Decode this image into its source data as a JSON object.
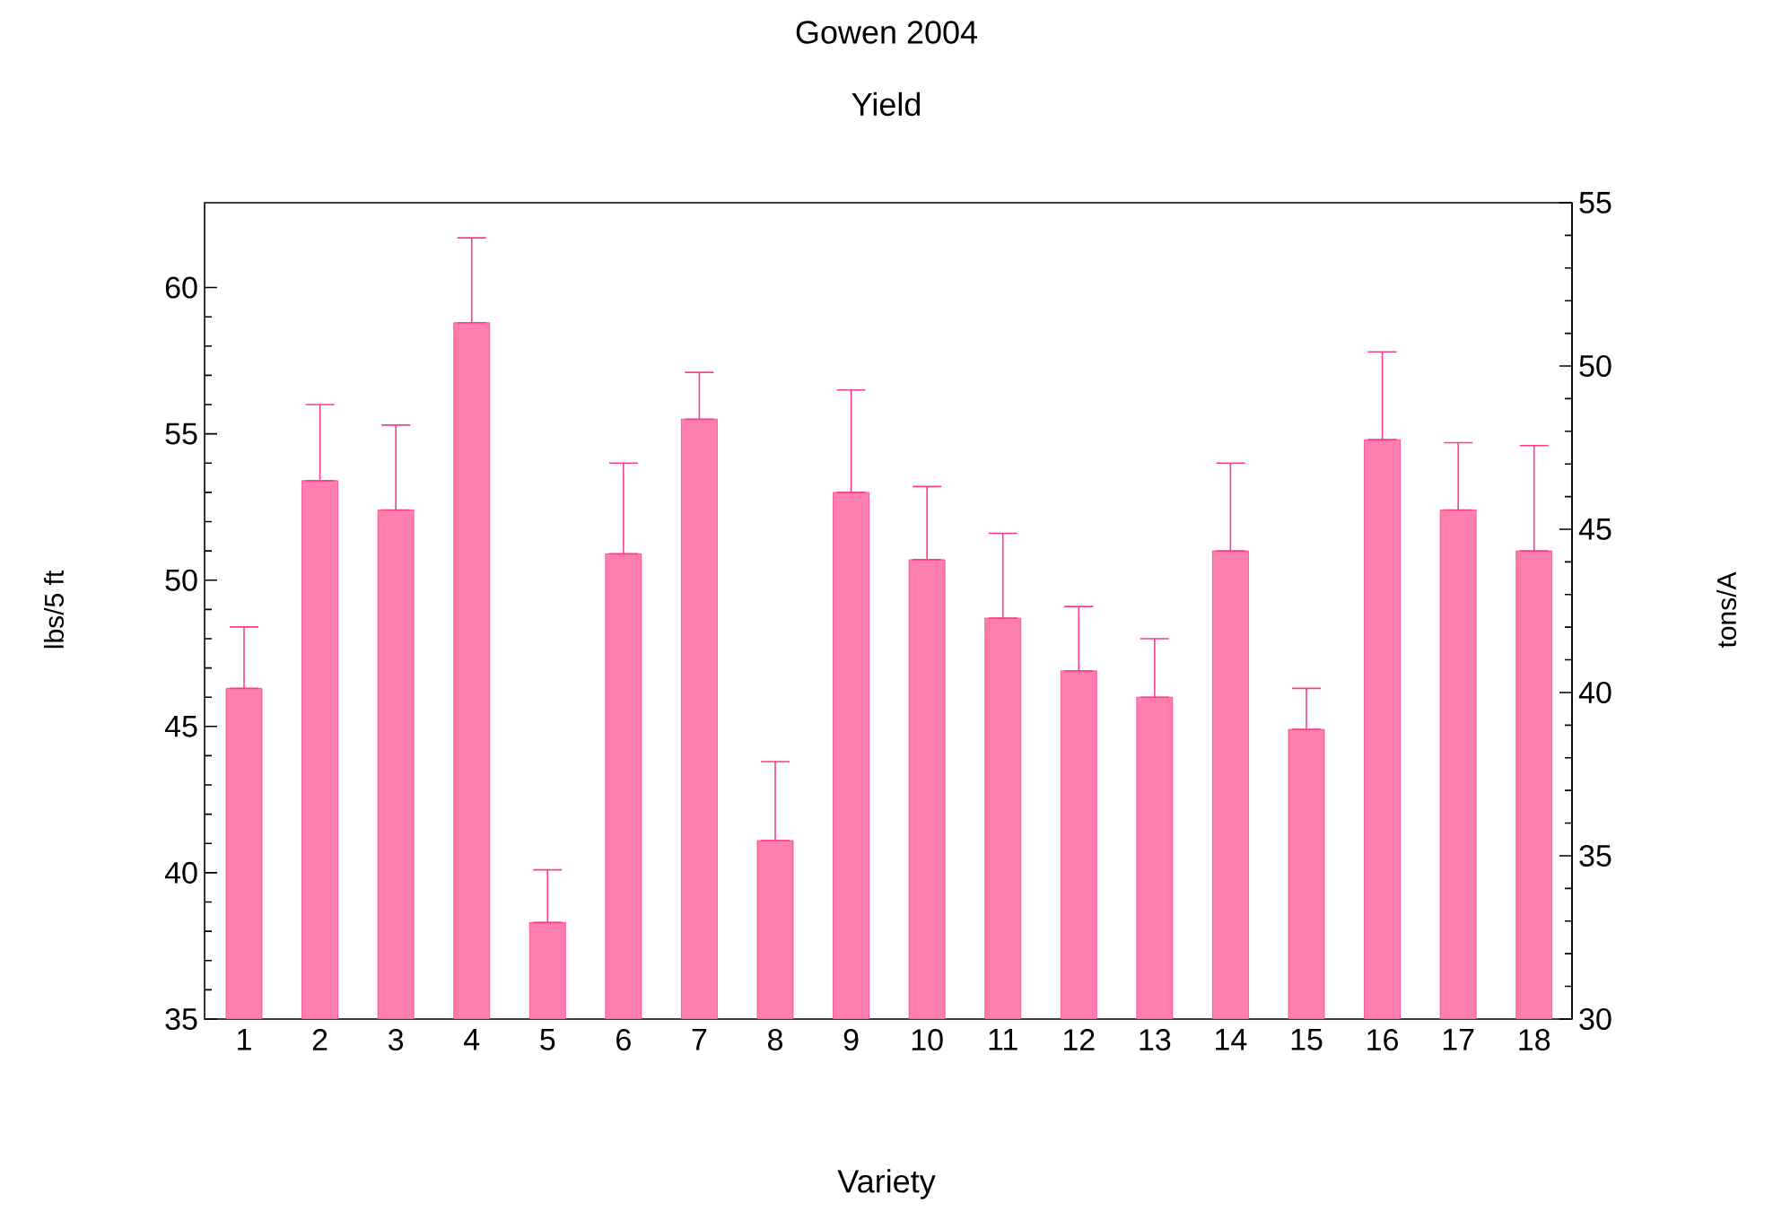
{
  "chart_data": {
    "type": "bar",
    "title": "Gowen 2004",
    "subtitle": "Yield",
    "xlabel": "Variety",
    "ylabel": "lbs/5 ft",
    "y2label": "tons/A",
    "categories": [
      "1",
      "2",
      "3",
      "4",
      "5",
      "6",
      "7",
      "8",
      "9",
      "10",
      "11",
      "12",
      "13",
      "14",
      "15",
      "16",
      "17",
      "18"
    ],
    "values": [
      46.3,
      53.4,
      52.4,
      58.8,
      38.3,
      50.9,
      55.5,
      41.1,
      53.0,
      50.7,
      48.7,
      46.9,
      46.0,
      51.0,
      44.9,
      54.8,
      52.4,
      51.0
    ],
    "errors": [
      [
        46.3,
        48.4
      ],
      [
        53.4,
        56.0
      ],
      [
        52.4,
        55.3
      ],
      [
        58.8,
        61.7
      ],
      [
        38.3,
        40.1
      ],
      [
        50.9,
        54.0
      ],
      [
        55.5,
        57.1
      ],
      [
        41.1,
        43.8
      ],
      [
        53.0,
        56.5
      ],
      [
        50.7,
        53.2
      ],
      [
        48.7,
        51.6
      ],
      [
        46.9,
        49.1
      ],
      [
        46.0,
        48.0
      ],
      [
        51.0,
        54.0
      ],
      [
        44.9,
        46.3
      ],
      [
        54.8,
        57.8
      ],
      [
        52.4,
        54.7
      ],
      [
        51.0,
        54.6
      ]
    ],
    "color": "#ff7eb0",
    "ylim": [
      35,
      62.9
    ],
    "yticks": [
      35,
      40,
      45,
      50,
      55,
      60
    ],
    "y2lim": [
      30,
      55
    ],
    "y2ticks": [
      30,
      35,
      40,
      45,
      50,
      55
    ],
    "grid": false
  }
}
